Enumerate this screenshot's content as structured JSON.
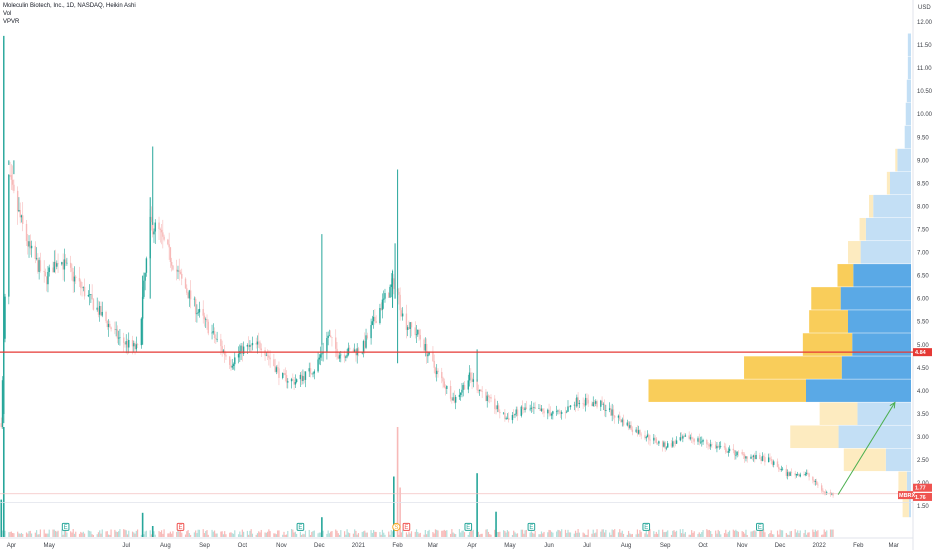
{
  "header": {
    "title": "Moleculin Biotech, Inc., 1D, NASDAQ, Heikin Ashi",
    "vol_label": "Vol",
    "vpvr_label": "VPVR"
  },
  "colors": {
    "up": "#26a69a",
    "down": "#ef5350",
    "up_light": "#b2dfdb",
    "down_light": "#f7b9b8",
    "vp_up": "#5aa9e6",
    "vp_down": "#f9cd5a",
    "vp_up_light": "#c3dff5",
    "vp_down_light": "#fdebc0",
    "hline": "#e53935",
    "arrow": "#4caf50",
    "earnings": "#26a69a",
    "dividend": "#ef5350",
    "split": "#f9a825"
  },
  "chart_data": {
    "type": "candlestick",
    "ylim": [
      1.2,
      12.0
    ],
    "currency_label": "USD",
    "y_ticks": [
      "1.50",
      "2.00",
      "2.50",
      "3.00",
      "3.50",
      "4.00",
      "4.50",
      "5.00",
      "5.50",
      "6.00",
      "6.50",
      "7.00",
      "7.50",
      "8.00",
      "8.50",
      "9.00",
      "9.50",
      "10.00",
      "10.50",
      "11.00",
      "11.50",
      "12.00"
    ],
    "x_ticks": [
      "Apr",
      "May",
      "Jul",
      "Aug",
      "Sep",
      "Oct",
      "Nov",
      "Dec",
      "2021",
      "Feb",
      "Mar",
      "Apr",
      "May",
      "Jun",
      "Jul",
      "Aug",
      "Sep",
      "Oct",
      "Nov",
      "Dec",
      "2022",
      "Feb",
      "Mar"
    ],
    "price_path": [
      [
        "2020-03-24",
        3.3
      ],
      [
        "2020-03-30",
        8.6
      ],
      [
        "2020-04-03",
        8.2
      ],
      [
        "2020-04-15",
        7.1
      ],
      [
        "2020-04-28",
        6.4
      ],
      [
        "2020-05-08",
        6.9
      ],
      [
        "2020-05-22",
        6.4
      ],
      [
        "2020-06-10",
        5.7
      ],
      [
        "2020-06-26",
        5.1
      ],
      [
        "2020-07-10",
        4.9
      ],
      [
        "2020-07-20",
        7.6
      ],
      [
        "2020-07-26",
        7.5
      ],
      [
        "2020-08-10",
        6.6
      ],
      [
        "2020-08-25",
        5.8
      ],
      [
        "2020-09-08",
        5.2
      ],
      [
        "2020-09-22",
        4.6
      ],
      [
        "2020-10-01",
        4.9
      ],
      [
        "2020-10-16",
        5.0
      ],
      [
        "2020-11-01",
        4.3
      ],
      [
        "2020-11-12",
        4.2
      ],
      [
        "2020-11-28",
        4.5
      ],
      [
        "2020-12-08",
        5.2
      ],
      [
        "2020-12-16",
        4.8
      ],
      [
        "2021-01-04",
        4.9
      ],
      [
        "2021-01-18",
        5.8
      ],
      [
        "2021-01-30",
        6.4
      ],
      [
        "2021-02-06",
        5.5
      ],
      [
        "2021-02-18",
        5.2
      ],
      [
        "2021-03-04",
        4.4
      ],
      [
        "2021-03-18",
        3.8
      ],
      [
        "2021-03-30",
        4.3
      ],
      [
        "2021-04-14",
        3.8
      ],
      [
        "2021-04-28",
        3.4
      ],
      [
        "2021-05-12",
        3.6
      ],
      [
        "2021-06-10",
        3.5
      ],
      [
        "2021-06-24",
        3.8
      ],
      [
        "2021-07-12",
        3.7
      ],
      [
        "2021-08-05",
        3.2
      ],
      [
        "2021-09-01",
        2.8
      ],
      [
        "2021-09-20",
        3.0
      ],
      [
        "2021-10-10",
        2.8
      ],
      [
        "2021-11-01",
        2.6
      ],
      [
        "2021-11-22",
        2.5
      ],
      [
        "2021-12-06",
        2.2
      ],
      [
        "2021-12-22",
        2.2
      ],
      [
        "2022-01-05",
        1.8
      ],
      [
        "2022-01-12",
        1.76
      ]
    ],
    "volume_spikes": [
      [
        "2020-03-26",
        1.0
      ],
      [
        "2020-03-24",
        0.34
      ],
      [
        "2020-07-14",
        0.22
      ],
      [
        "2020-12-03",
        0.18
      ],
      [
        "2021-01-29",
        0.55
      ],
      [
        "2021-02-01",
        1.0
      ],
      [
        "2021-02-03",
        0.45
      ],
      [
        "2021-04-05",
        0.58
      ],
      [
        "2021-04-20",
        0.23
      ],
      [
        "2020-07-22",
        0.1
      ]
    ],
    "volume_profile": [
      {
        "price": 11.5,
        "up": 3,
        "down": 0
      },
      {
        "price": 11.0,
        "up": 3,
        "down": 0
      },
      {
        "price": 10.5,
        "up": 4,
        "down": 0
      },
      {
        "price": 10.0,
        "up": 5,
        "down": 0
      },
      {
        "price": 9.5,
        "up": 6,
        "down": 0
      },
      {
        "price": 9.0,
        "up": 13,
        "down": 2
      },
      {
        "price": 8.5,
        "up": 20,
        "down": 3
      },
      {
        "price": 8.0,
        "up": 36,
        "down": 4
      },
      {
        "price": 7.5,
        "up": 43,
        "down": 6
      },
      {
        "price": 7.0,
        "up": 48,
        "down": 12
      },
      {
        "price": 6.5,
        "up": 55,
        "down": 15
      },
      {
        "price": 6.0,
        "up": 67,
        "down": 28
      },
      {
        "price": 5.5,
        "up": 60,
        "down": 37
      },
      {
        "price": 5.0,
        "up": 56,
        "down": 47
      },
      {
        "price": 4.5,
        "up": 66,
        "down": 93
      },
      {
        "price": 4.0,
        "up": 100,
        "down": 150
      },
      {
        "price": 3.5,
        "up": 51,
        "down": 36
      },
      {
        "price": 3.0,
        "up": 69,
        "down": 46
      },
      {
        "price": 2.5,
        "up": 24,
        "down": 40
      },
      {
        "price": 2.0,
        "up": 4,
        "down": 8
      },
      {
        "price": 1.5,
        "up": 2,
        "down": 6
      }
    ],
    "last_price_label": "4.84",
    "current_label_a": "1.77",
    "current_label_b": "1.76",
    "ticker_badge": "MBRX",
    "events": [
      {
        "date": "2020-05-14",
        "kind": "earnings",
        "label": "E"
      },
      {
        "date": "2020-08-13",
        "kind": "dividend",
        "label": "E"
      },
      {
        "date": "2020-11-16",
        "kind": "earnings",
        "label": "E"
      },
      {
        "date": "2021-01-31",
        "kind": "split",
        "label": "S"
      },
      {
        "date": "2021-02-08",
        "kind": "dividend",
        "label": "E"
      },
      {
        "date": "2021-03-29",
        "kind": "earnings",
        "label": "E"
      },
      {
        "date": "2021-05-18",
        "kind": "earnings",
        "label": "E"
      },
      {
        "date": "2021-08-17",
        "kind": "earnings",
        "label": "E"
      },
      {
        "date": "2021-11-15",
        "kind": "earnings",
        "label": "E"
      }
    ],
    "horizontal_line_price": 4.84,
    "arrow": {
      "from": [
        "2022-01-16",
        1.75
      ],
      "to": [
        "2022-03-02",
        3.75
      ]
    }
  }
}
